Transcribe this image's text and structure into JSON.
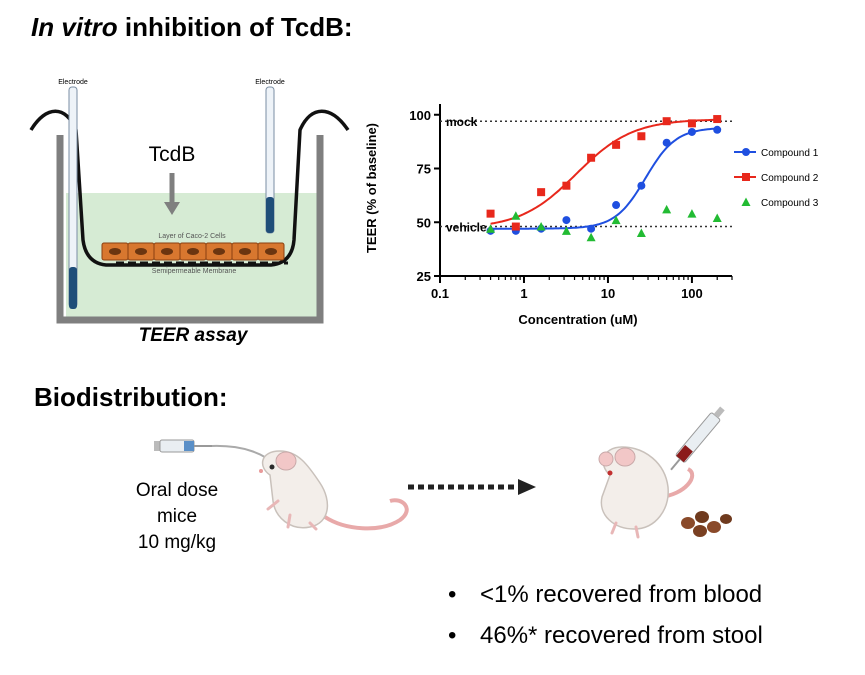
{
  "section1": {
    "title_italic": "In vitro",
    "title_rest": " inhibition of TcdB:"
  },
  "teer_diagram": {
    "electrode_left": "Electrode",
    "electrode_right": "Electrode",
    "toxin_label": "TcdB",
    "cells_label": "Layer of Caco-2 Cells",
    "membrane_label": "Semipermeable Membrane",
    "caption": "TEER assay",
    "colors": {
      "medium": "#d6ebd4",
      "cell": "#d8772f",
      "wall": "#7f7f7f",
      "electrode": "#1f4e79"
    }
  },
  "chart_data": {
    "type": "scatter",
    "title": "",
    "xlabel": "Concentration (uM)",
    "ylabel": "TEER (% of baseline)",
    "xscale": "log",
    "xlim": [
      0.1,
      300
    ],
    "ylim": [
      25,
      105
    ],
    "xticks": [
      0.1,
      1,
      10,
      100
    ],
    "xtick_labels": [
      "0.1",
      "1",
      "10",
      "100"
    ],
    "yticks": [
      25,
      50,
      75,
      100
    ],
    "ytick_labels": [
      "25",
      "50",
      "75",
      "100"
    ],
    "reference_lines": [
      {
        "label": "mock",
        "y": 97
      },
      {
        "label": "vehicle",
        "y": 48
      }
    ],
    "legend_position": "right",
    "series": [
      {
        "name": "Compound 1",
        "color": "#1f4fe0",
        "marker": "circle",
        "fit": "sigmoid",
        "x": [
          0.4,
          0.8,
          1.6,
          3.2,
          6.3,
          12.5,
          25,
          50,
          100,
          200
        ],
        "y": [
          46,
          46,
          47,
          51,
          47,
          58,
          67,
          87,
          92,
          93
        ],
        "fit_params": {
          "bottom": 47,
          "top": 94,
          "ec50": 28,
          "hill": 2.4
        }
      },
      {
        "name": "Compound 2",
        "color": "#e8281c",
        "marker": "square",
        "fit": "sigmoid",
        "x": [
          0.4,
          0.8,
          1.6,
          3.2,
          6.3,
          12.5,
          25,
          50,
          100,
          200
        ],
        "y": [
          54,
          48,
          64,
          67,
          80,
          86,
          90,
          97,
          96,
          98
        ],
        "fit_params": {
          "bottom": 47,
          "top": 98,
          "ec50": 4.2,
          "hill": 1.3
        }
      },
      {
        "name": "Compound 3",
        "color": "#22bb33",
        "marker": "triangle",
        "fit": "none",
        "x": [
          0.4,
          0.8,
          1.6,
          3.2,
          6.3,
          12.5,
          25,
          50,
          100,
          200
        ],
        "y": [
          47,
          53,
          48,
          46,
          43,
          51,
          45,
          56,
          54,
          52
        ]
      }
    ]
  },
  "section2": {
    "title": "Biodistribution:"
  },
  "dose_label": {
    "line1": "Oral dose",
    "line2": "mice",
    "line3": "10 mg/kg"
  },
  "results": [
    {
      "bullet": "•",
      "text": "<1% recovered from blood"
    },
    {
      "bullet": "•",
      "text": "46%* recovered from stool"
    }
  ]
}
